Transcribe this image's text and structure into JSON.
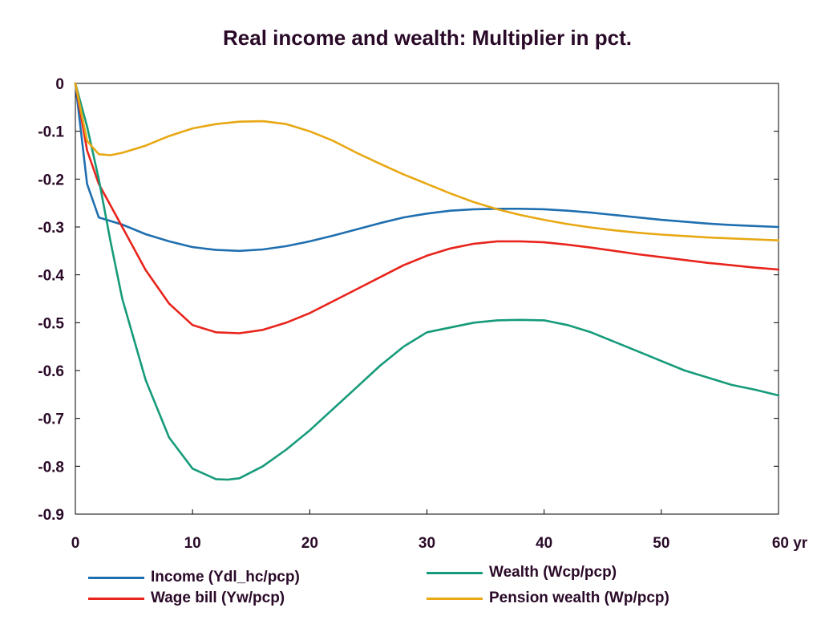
{
  "chart_data": {
    "type": "line",
    "title": "Real income and wealth: Multiplier in pct.",
    "xlabel": "",
    "ylabel": "",
    "xlim": [
      0,
      60
    ],
    "ylim": [
      -0.9,
      0
    ],
    "x_ticks": [
      0,
      10,
      20,
      30,
      40,
      50,
      60
    ],
    "x_tick_labels": [
      "0",
      "10",
      "20",
      "30",
      "40",
      "50",
      "60 yr"
    ],
    "y_ticks": [
      0,
      -0.1,
      -0.2,
      -0.3,
      -0.4,
      -0.5,
      -0.6,
      -0.7,
      -0.8,
      -0.9
    ],
    "y_tick_labels": [
      "0",
      "-0.1",
      "-0.2",
      "-0.3",
      "-0.4",
      "-0.5",
      "-0.6",
      "-0.7",
      "-0.8",
      "-0.9"
    ],
    "grid": false,
    "legend_position": "bottom",
    "series": [
      {
        "name": "Income (Ydl_hc/pcp)",
        "color": "#1f6fb0",
        "x": [
          0,
          1,
          2,
          4,
          6,
          8,
          10,
          12,
          14,
          16,
          18,
          20,
          22,
          24,
          26,
          28,
          30,
          32,
          34,
          36,
          38,
          40,
          42,
          44,
          46,
          48,
          50,
          52,
          54,
          56,
          58,
          60
        ],
        "y": [
          0,
          -0.21,
          -0.28,
          -0.295,
          -0.315,
          -0.33,
          -0.342,
          -0.348,
          -0.35,
          -0.347,
          -0.34,
          -0.33,
          -0.318,
          -0.305,
          -0.292,
          -0.28,
          -0.272,
          -0.266,
          -0.263,
          -0.262,
          -0.262,
          -0.263,
          -0.266,
          -0.27,
          -0.275,
          -0.28,
          -0.285,
          -0.289,
          -0.293,
          -0.296,
          -0.298,
          -0.3
        ]
      },
      {
        "name": "Wage bill (Yw/pcp)",
        "color": "#e8241c",
        "x": [
          0,
          1,
          2,
          4,
          6,
          8,
          10,
          12,
          14,
          16,
          18,
          20,
          22,
          24,
          26,
          28,
          30,
          32,
          34,
          36,
          38,
          40,
          42,
          44,
          46,
          48,
          50,
          52,
          54,
          56,
          58,
          60
        ],
        "y": [
          0,
          -0.14,
          -0.21,
          -0.3,
          -0.39,
          -0.46,
          -0.505,
          -0.52,
          -0.522,
          -0.515,
          -0.5,
          -0.48,
          -0.455,
          -0.43,
          -0.405,
          -0.38,
          -0.36,
          -0.345,
          -0.335,
          -0.33,
          -0.33,
          -0.332,
          -0.337,
          -0.343,
          -0.35,
          -0.357,
          -0.363,
          -0.369,
          -0.375,
          -0.38,
          -0.385,
          -0.389
        ]
      },
      {
        "name": "Wealth (Wcp/pcp)",
        "color": "#169b7a",
        "x": [
          0,
          1,
          2,
          3,
          4,
          6,
          8,
          10,
          12,
          13,
          14,
          16,
          18,
          20,
          22,
          24,
          26,
          28,
          30,
          32,
          34,
          36,
          38,
          40,
          42,
          44,
          46,
          48,
          50,
          52,
          54,
          56,
          58,
          60
        ],
        "y": [
          0,
          -0.09,
          -0.2,
          -0.33,
          -0.45,
          -0.62,
          -0.74,
          -0.805,
          -0.827,
          -0.828,
          -0.825,
          -0.8,
          -0.765,
          -0.725,
          -0.68,
          -0.635,
          -0.59,
          -0.55,
          -0.52,
          -0.51,
          -0.5,
          -0.495,
          -0.494,
          -0.495,
          -0.505,
          -0.52,
          -0.54,
          -0.56,
          -0.58,
          -0.6,
          -0.615,
          -0.63,
          -0.64,
          -0.652
        ]
      },
      {
        "name": "Pension wealth (Wp/pcp)",
        "color": "#e8a813",
        "x": [
          0,
          1,
          2,
          3,
          4,
          6,
          8,
          10,
          12,
          14,
          16,
          18,
          20,
          22,
          24,
          26,
          28,
          30,
          32,
          34,
          36,
          38,
          40,
          42,
          44,
          46,
          48,
          50,
          52,
          54,
          56,
          58,
          60
        ],
        "y": [
          0,
          -0.12,
          -0.148,
          -0.15,
          -0.145,
          -0.13,
          -0.11,
          -0.094,
          -0.085,
          -0.08,
          -0.079,
          -0.085,
          -0.1,
          -0.12,
          -0.145,
          -0.168,
          -0.19,
          -0.21,
          -0.23,
          -0.248,
          -0.263,
          -0.275,
          -0.285,
          -0.294,
          -0.301,
          -0.307,
          -0.312,
          -0.316,
          -0.319,
          -0.322,
          -0.324,
          -0.326,
          -0.328
        ]
      }
    ]
  }
}
